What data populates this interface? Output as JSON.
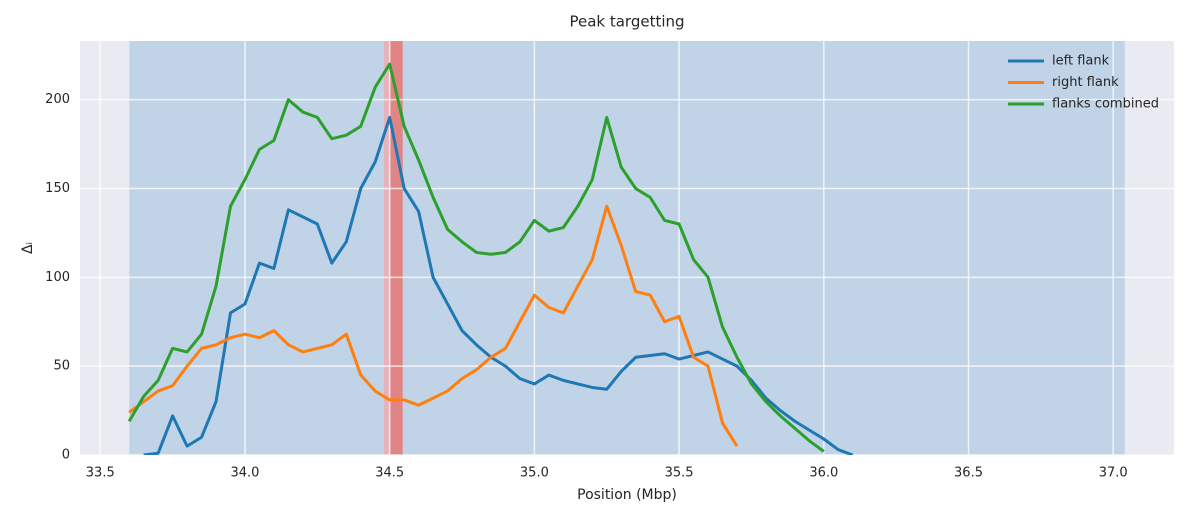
{
  "chart_data": {
    "type": "line",
    "title": "Peak targetting",
    "xlabel": "Position (Mbp)",
    "ylabel": "Δᵢ",
    "x": [
      33.6,
      33.65,
      33.7,
      33.75,
      33.8,
      33.85,
      33.9,
      33.95,
      34.0,
      34.05,
      34.1,
      34.15,
      34.2,
      34.25,
      34.3,
      34.35,
      34.4,
      34.45,
      34.5,
      34.55,
      34.6,
      34.65,
      34.7,
      34.75,
      34.8,
      34.85,
      34.9,
      34.95,
      35.0,
      35.05,
      35.1,
      35.15,
      35.2,
      35.25,
      35.3,
      35.35,
      35.4,
      35.45,
      35.5,
      35.55,
      35.6,
      35.65,
      35.7,
      35.75,
      35.8,
      35.85,
      35.9,
      35.95,
      36.0,
      36.05,
      36.1
    ],
    "series": [
      {
        "name": "left flank",
        "color": "#1f77b4",
        "values": [
          null,
          0,
          1,
          22,
          5,
          10,
          30,
          80,
          85,
          108,
          105,
          138,
          134,
          130,
          108,
          120,
          150,
          165,
          190,
          150,
          137,
          100,
          85,
          70,
          62,
          55,
          50,
          43,
          40,
          45,
          42,
          40,
          38,
          37,
          47,
          55,
          56,
          57,
          54,
          56,
          58,
          54,
          50,
          42,
          32,
          25,
          19,
          14,
          9,
          3,
          0
        ]
      },
      {
        "name": "right flank",
        "color": "#ff7f0e",
        "values": [
          24,
          30,
          36,
          39,
          50,
          60,
          62,
          66,
          68,
          66,
          70,
          62,
          58,
          60,
          62,
          68,
          45,
          36,
          31,
          31,
          28,
          32,
          36,
          43,
          48,
          55,
          60,
          75,
          90,
          83,
          80,
          95,
          110,
          140,
          118,
          92,
          90,
          75,
          78,
          55,
          50,
          18,
          5,
          null,
          null,
          null,
          null,
          null,
          null,
          null,
          null
        ]
      },
      {
        "name": "flanks combined",
        "color": "#2ca02c",
        "values": [
          19,
          33,
          42,
          60,
          58,
          68,
          95,
          140,
          155,
          172,
          177,
          200,
          193,
          190,
          178,
          180,
          185,
          207,
          220,
          185,
          166,
          145,
          127,
          120,
          114,
          113,
          114,
          120,
          132,
          126,
          128,
          140,
          155,
          190,
          162,
          150,
          145,
          132,
          130,
          110,
          100,
          72,
          55,
          40,
          30,
          22,
          15,
          8,
          2,
          null,
          null
        ]
      }
    ],
    "spans": [
      {
        "xlim": [
          33.6,
          37.04
        ],
        "color": "#c1d3e6"
      },
      {
        "xlim": [
          34.48,
          34.5
        ],
        "color": "#e6b3bd"
      },
      {
        "xlim": [
          34.5,
          34.545
        ],
        "color": "#e08585"
      }
    ],
    "xlim": [
      33.43,
      37.21
    ],
    "ylim": [
      0,
      233
    ],
    "xticks": [
      {
        "value": 33.5,
        "label": "33.5"
      },
      {
        "value": 34,
        "label": "34.0"
      },
      {
        "value": 34.5,
        "label": "34.5"
      },
      {
        "value": 35,
        "label": "35.0"
      },
      {
        "value": 35.5,
        "label": "35.5"
      },
      {
        "value": 36,
        "label": "36.0"
      },
      {
        "value": 36.5,
        "label": "36.5"
      },
      {
        "value": 37,
        "label": "37.0"
      }
    ],
    "yticks": [
      0,
      50,
      100,
      150,
      200
    ],
    "grid": true,
    "legend": "upper right"
  }
}
